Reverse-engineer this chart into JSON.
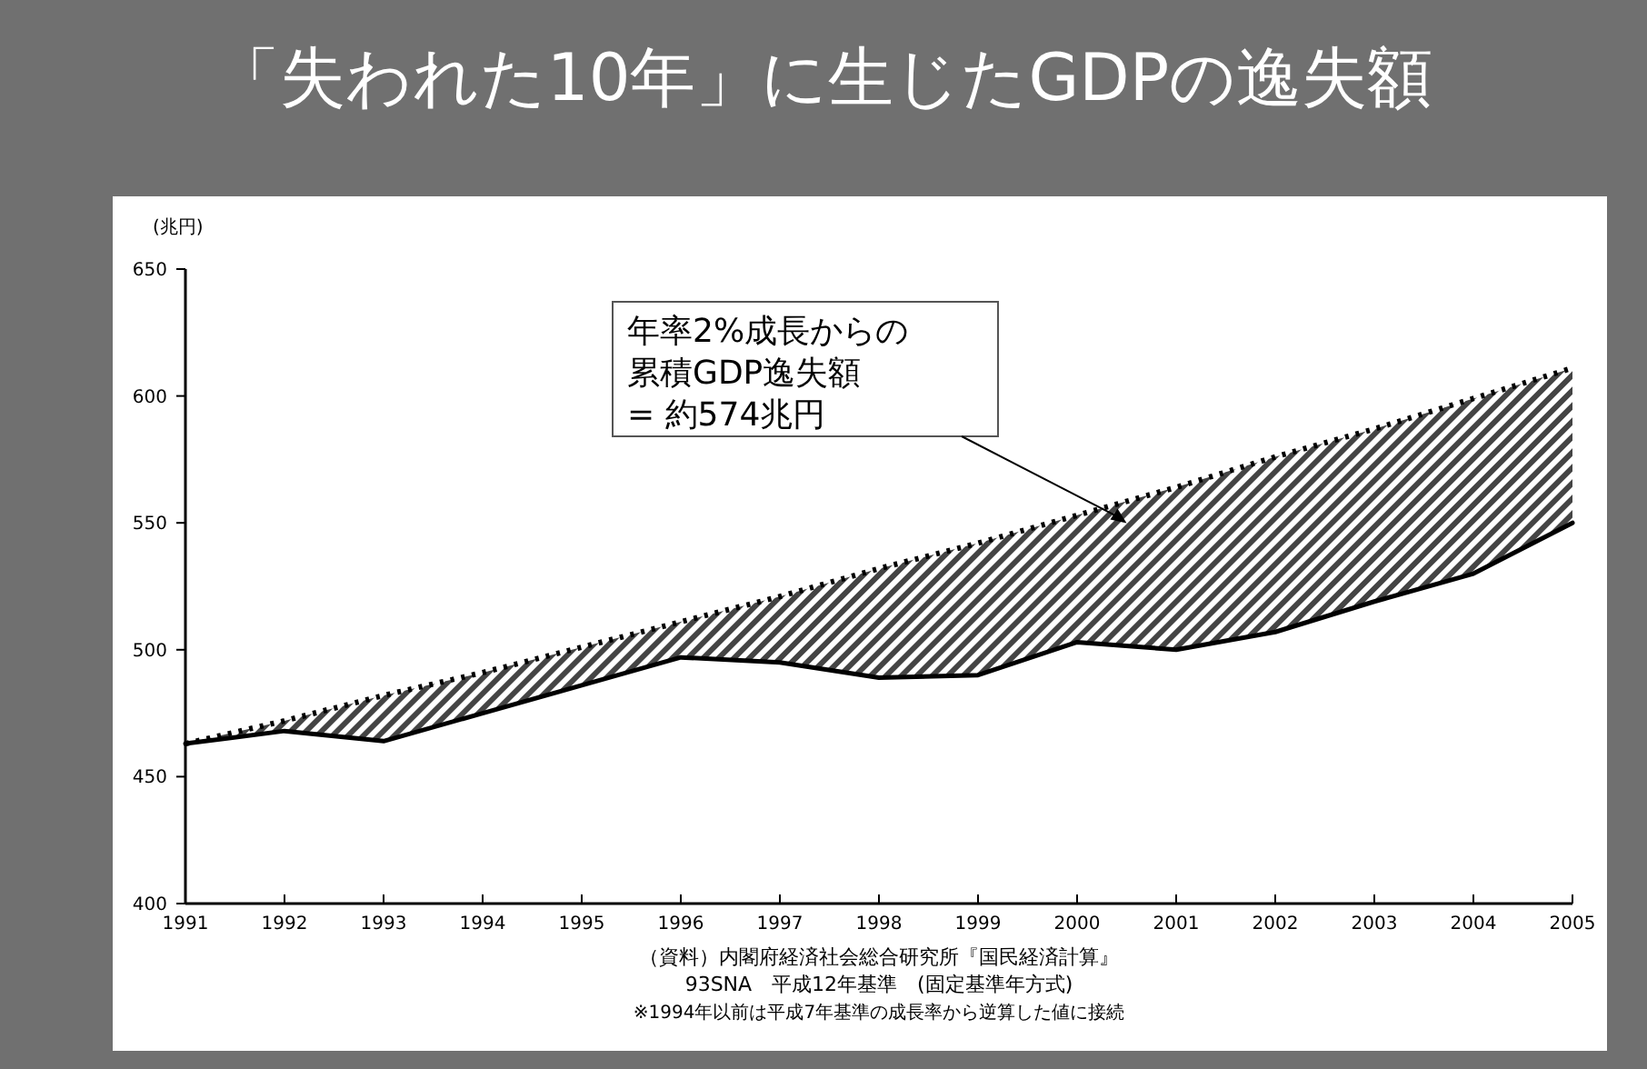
{
  "chart_data": {
    "type": "line",
    "title": "「失われた10年」に生じたGDPの逸失額",
    "ylabel": "(兆円)",
    "x": [
      1991,
      1992,
      1993,
      1994,
      1995,
      1996,
      1997,
      1998,
      1999,
      2000,
      2001,
      2002,
      2003,
      2004,
      2005
    ],
    "xlim": [
      1991,
      2005
    ],
    "xticks": [
      1991,
      1992,
      1993,
      1994,
      1995,
      1996,
      1997,
      1998,
      1999,
      2000,
      2001,
      2002,
      2003,
      2004,
      2005
    ],
    "ylim": [
      400,
      650
    ],
    "yticks": [
      400,
      450,
      500,
      550,
      600,
      650
    ],
    "grid": false,
    "marker": "none",
    "series": [
      {
        "type": "line",
        "color": "#000000",
        "line_style": "solid",
        "values": [
          463,
          468,
          464,
          475,
          486,
          497,
          495,
          489,
          490,
          503,
          500,
          507,
          519,
          530,
          550
        ]
      },
      {
        "type": "area",
        "color": "#000000",
        "line_style": "dotted",
        "values": [
          463,
          472,
          482,
          491,
          501,
          511,
          521,
          532,
          542,
          553,
          564,
          576,
          587,
          599,
          611
        ]
      }
    ],
    "annotations": [
      "年率2%成長からの累積GDP逸失額 = 約574兆円",
      "（資料）内閣府経済社会総合研究所『国民経済計算』",
      "93SNA　平成12年基準　(固定基準年方式)",
      "※1994年以前は平成7年基準の成長率から逆算した値に接続"
    ]
  }
}
